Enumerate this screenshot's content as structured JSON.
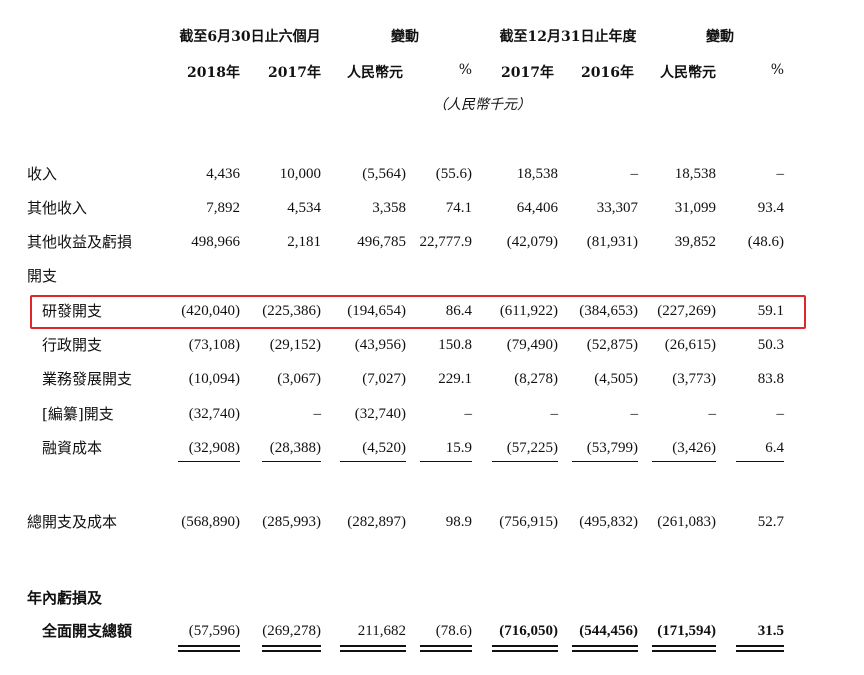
{
  "header": {
    "group1": "截至6月30日止六個月",
    "change1": "變動",
    "group2": "截至12月31日止年度",
    "change2": "變動",
    "cols": [
      "2018年",
      "2017年",
      "人民幣元",
      "%",
      "2017年",
      "2016年",
      "人民幣元",
      "%"
    ],
    "unit": "（人民幣千元）"
  },
  "rows": [
    {
      "label": "收入",
      "values": [
        "4,436",
        "10,000",
        "(5,564)",
        "(55.6)",
        "18,538",
        "–",
        "18,538",
        "–"
      ]
    },
    {
      "label": "其他收入",
      "values": [
        "7,892",
        "4,534",
        "3,358",
        "74.1",
        "64,406",
        "33,307",
        "31,099",
        "93.4"
      ]
    },
    {
      "label": "其他收益及虧損",
      "values": [
        "498,966",
        "2,181",
        "496,785",
        "22,777.9",
        "(42,079)",
        "(81,931)",
        "39,852",
        "(48.6)"
      ]
    },
    {
      "label": "開支",
      "values": []
    },
    {
      "label": "研發開支",
      "values": [
        "(420,040)",
        "(225,386)",
        "(194,654)",
        "86.4",
        "(611,922)",
        "(384,653)",
        "(227,269)",
        "59.1"
      ]
    },
    {
      "label": "行政開支",
      "values": [
        "(73,108)",
        "(29,152)",
        "(43,956)",
        "150.8",
        "(79,490)",
        "(52,875)",
        "(26,615)",
        "50.3"
      ]
    },
    {
      "label": "業務發展開支",
      "values": [
        "(10,094)",
        "(3,067)",
        "(7,027)",
        "229.1",
        "(8,278)",
        "(4,505)",
        "(3,773)",
        "83.8"
      ]
    },
    {
      "label": "[編纂]開支",
      "values": [
        "(32,740)",
        "–",
        "(32,740)",
        "–",
        "–",
        "–",
        "–",
        "–"
      ]
    },
    {
      "label": "融資成本",
      "values": [
        "(32,908)",
        "(28,388)",
        "(4,520)",
        "15.9",
        "(57,225)",
        "(53,799)",
        "(3,426)",
        "6.4"
      ]
    },
    {
      "label": "總開支及成本",
      "values": [
        "(568,890)",
        "(285,993)",
        "(282,897)",
        "98.9",
        "(756,915)",
        "(495,832)",
        "(261,083)",
        "52.7"
      ]
    },
    {
      "label": "年內虧損及",
      "values": []
    },
    {
      "label": "全面開支總額",
      "values": [
        "(57,596)",
        "(269,278)",
        "211,682",
        "(78.6)",
        "(716,050)",
        "(544,456)",
        "(171,594)",
        "31.5"
      ]
    }
  ],
  "highlight_color": "#e0262b"
}
